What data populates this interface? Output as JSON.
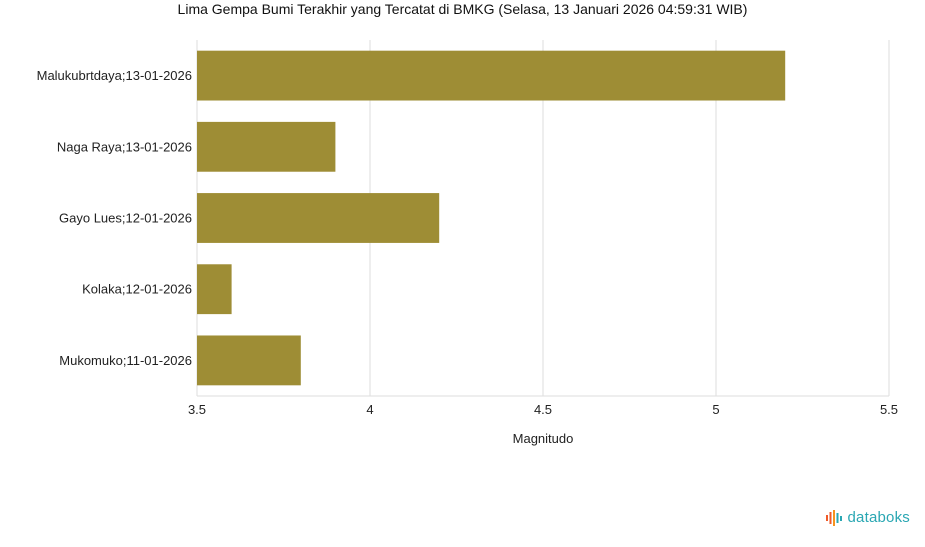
{
  "chart_data": {
    "type": "bar",
    "orientation": "horizontal",
    "title": "Lima Gempa Bumi Terakhir yang Tercatat di BMKG (Selasa, 13 Januari 2026 04:59:31 WIB)",
    "xlabel": "Magnitudo",
    "ylabel": "",
    "categories": [
      "Malukubrtdaya;13-01-2026",
      "Naga Raya;13-01-2026",
      "Gayo Lues;12-01-2026",
      "Kolaka;12-01-2026",
      "Mukomuko;11-01-2026"
    ],
    "values": [
      5.2,
      3.9,
      4.2,
      3.6,
      3.8
    ],
    "xlim": [
      3.5,
      5.5
    ],
    "xticks": [
      "3.5",
      "4",
      "4.5",
      "5",
      "5.5"
    ],
    "grid": true,
    "bar_color": "#9e8d35"
  },
  "brand": {
    "name": "databoks",
    "colors": [
      "#f05a28",
      "#2aa7b3"
    ]
  }
}
